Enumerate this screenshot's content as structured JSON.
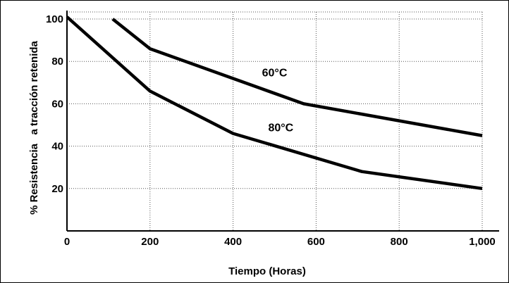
{
  "chart_data": {
    "type": "line",
    "xlabel": "Tiempo (Horas)",
    "ylabel": "% Resistencia   a tracción retenida",
    "xlim": [
      0,
      1000
    ],
    "ylim": [
      0,
      104
    ],
    "x_ticks": [
      {
        "value": 0,
        "label": "0"
      },
      {
        "value": 200,
        "label": "200"
      },
      {
        "value": 400,
        "label": "400"
      },
      {
        "value": 600,
        "label": "600"
      },
      {
        "value": 800,
        "label": "800"
      },
      {
        "value": 1000,
        "label": "1,000"
      }
    ],
    "y_ticks": [
      {
        "value": 20,
        "label": "20"
      },
      {
        "value": 40,
        "label": "40"
      },
      {
        "value": 60,
        "label": "60"
      },
      {
        "value": 80,
        "label": "80"
      },
      {
        "value": 100,
        "label": "100"
      }
    ],
    "grid": true,
    "series": [
      {
        "name": "60°C",
        "label_at": [
          500,
          73
        ],
        "points": [
          [
            110,
            100
          ],
          [
            200,
            86
          ],
          [
            570,
            60
          ],
          [
            1000,
            45
          ]
        ]
      },
      {
        "name": "80°C",
        "label_at": [
          515,
          47
        ],
        "points": [
          [
            0,
            101
          ],
          [
            200,
            66
          ],
          [
            400,
            46
          ],
          [
            710,
            28
          ],
          [
            1000,
            20
          ]
        ]
      }
    ]
  }
}
